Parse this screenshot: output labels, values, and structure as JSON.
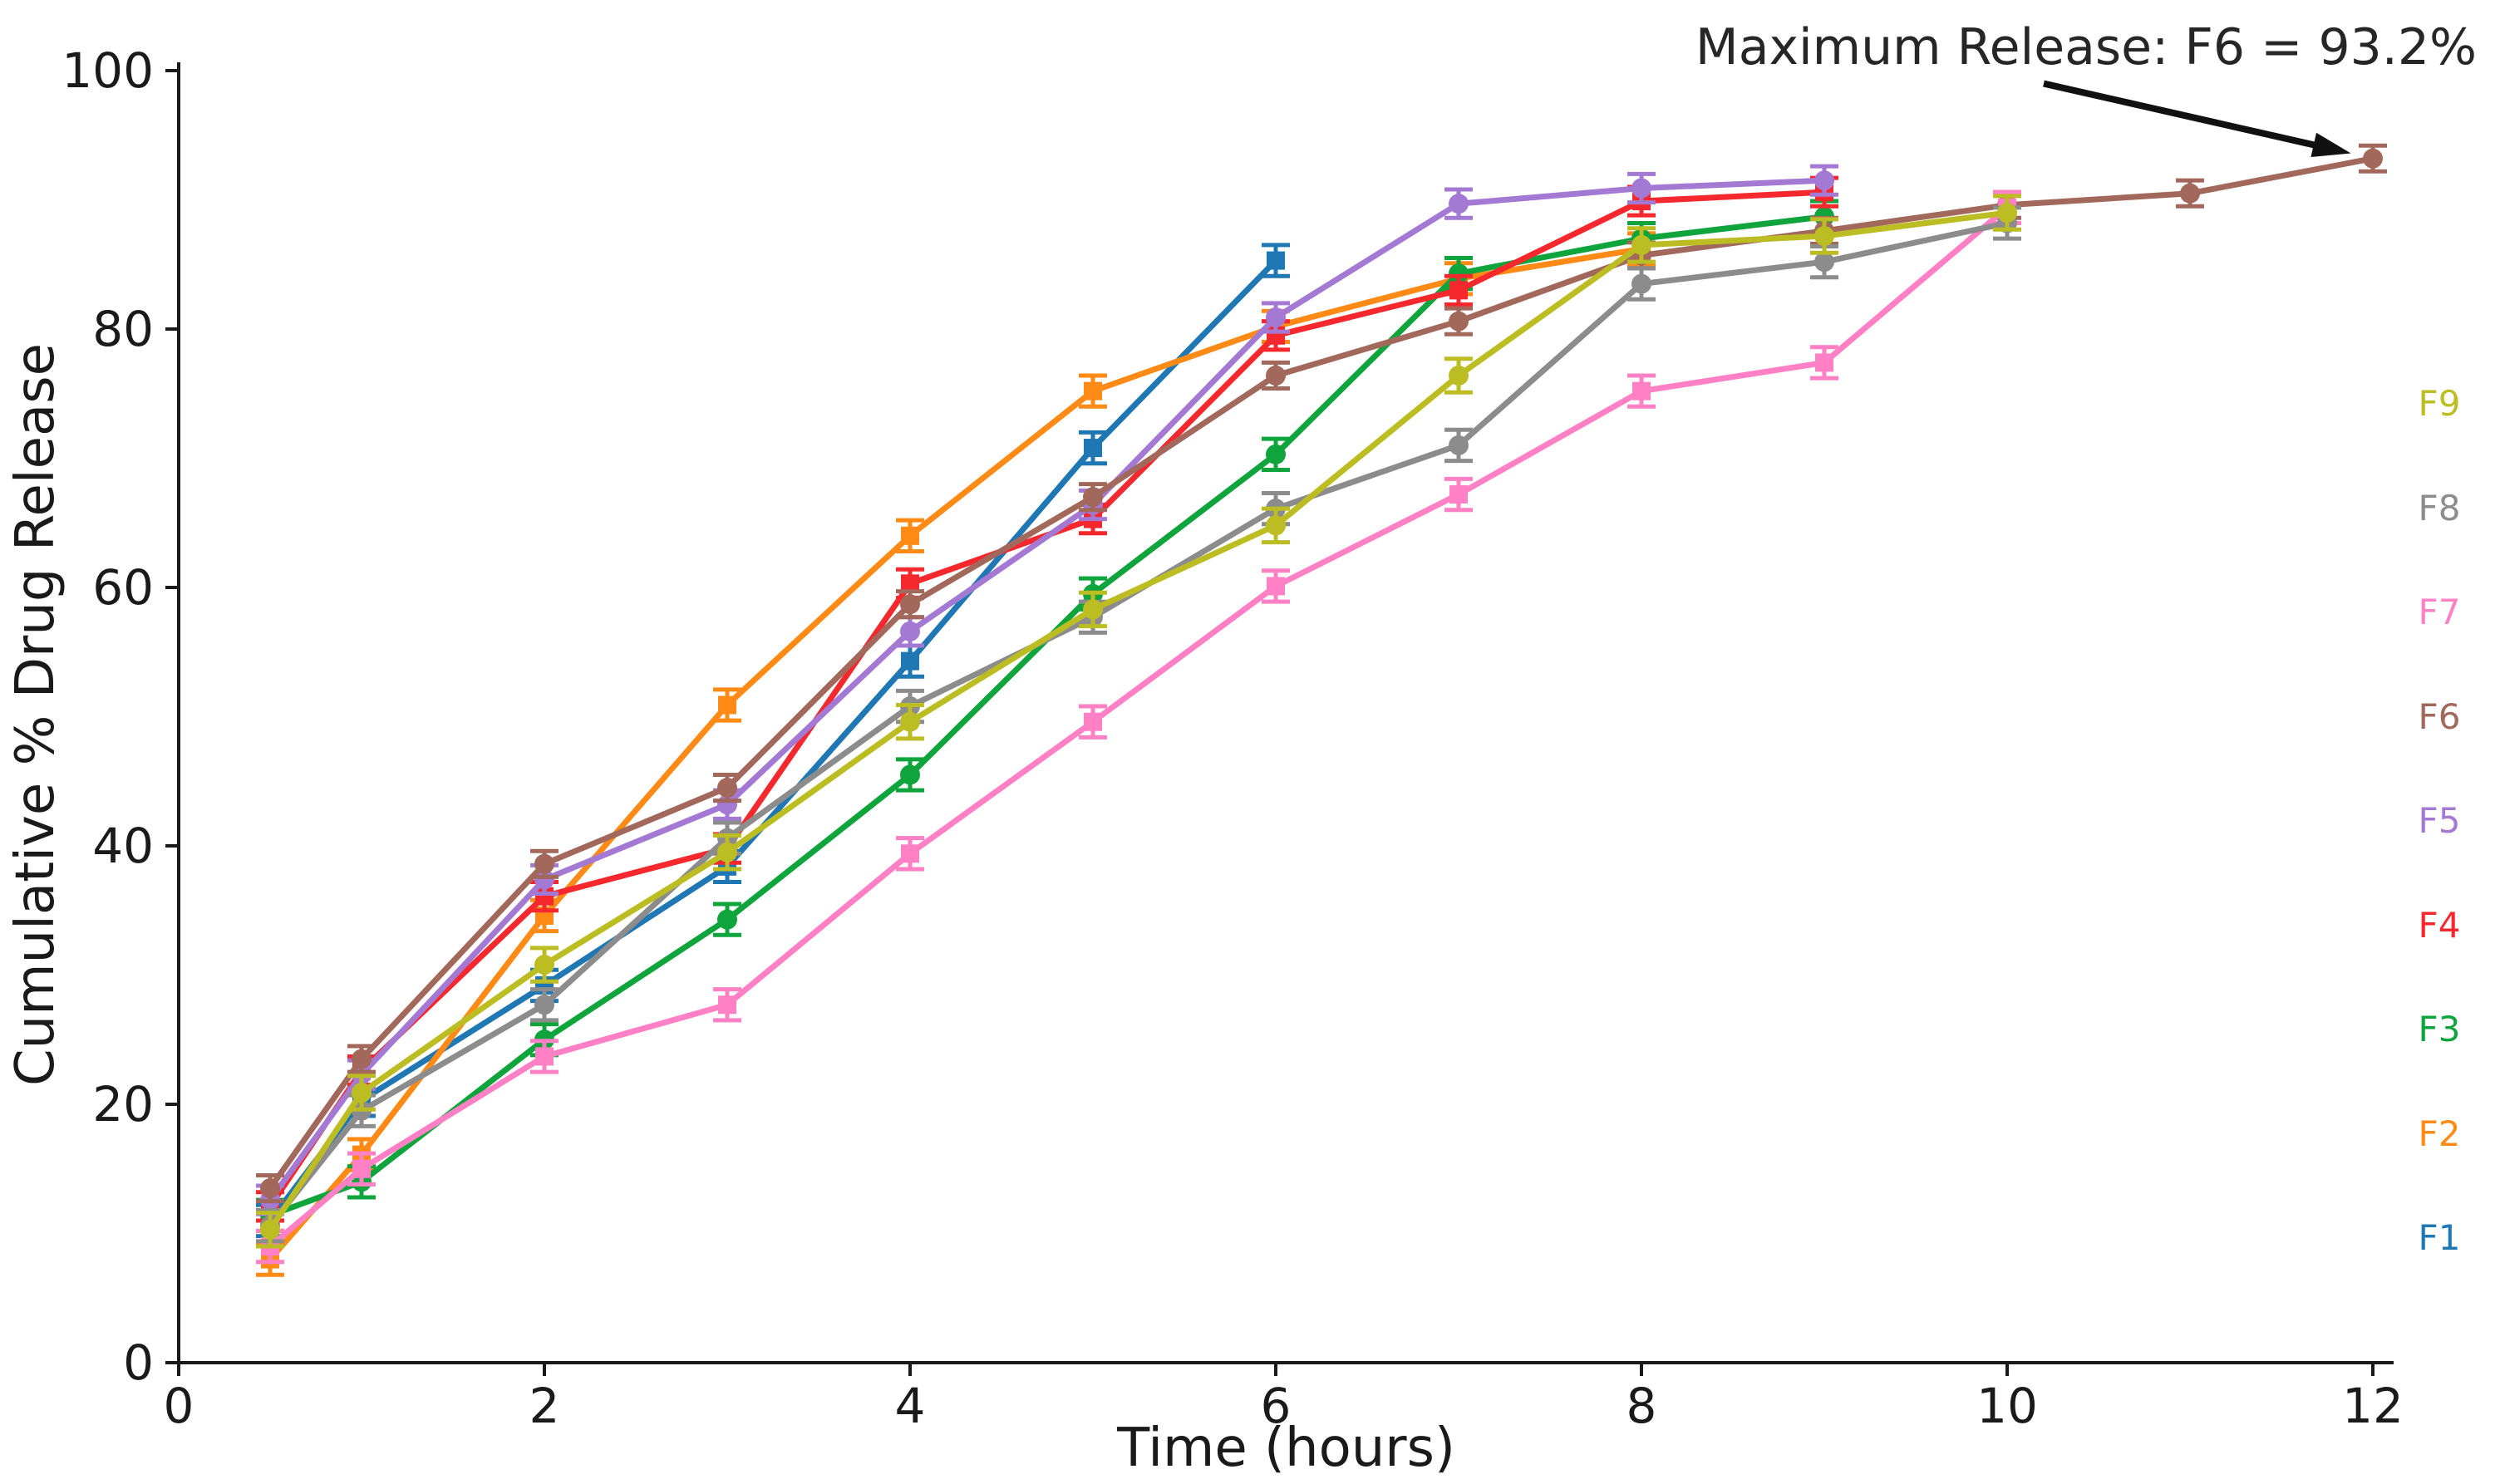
{
  "chart_data": {
    "type": "line",
    "title": "",
    "xlabel": "Time (hours)",
    "ylabel": "Cumulative % Drug Release",
    "xlim": [
      0,
      12.6
    ],
    "ylim": [
      0,
      105
    ],
    "xticks": [
      0,
      2,
      4,
      6,
      8,
      10,
      12
    ],
    "yticks": [
      0,
      20,
      40,
      60,
      80,
      100
    ],
    "grid": false,
    "error_bars": true,
    "legend_position": "right-outside",
    "annotation": {
      "text": "Maximum Release: F6 = 93.2%",
      "arrow_from": [
        10.2,
        99.0
      ],
      "arrow_to": [
        11.88,
        93.6
      ],
      "points_at": {
        "series": "F6",
        "x": 12,
        "y": 93.2
      }
    },
    "series": [
      {
        "name": "F1",
        "color": "#1f77b4",
        "marker": "square",
        "x": [
          0.5,
          1,
          2,
          3,
          4,
          5,
          6
        ],
        "y": [
          11.0,
          20.3,
          29.2,
          38.4,
          54.3,
          70.8,
          85.3
        ],
        "yerr": 1.2
      },
      {
        "name": "F2",
        "color": "#ff8a15",
        "marker": "square",
        "x": [
          0.5,
          1,
          2,
          3,
          4,
          5,
          6,
          7,
          8
        ],
        "y": [
          8.0,
          16.1,
          34.6,
          50.9,
          64.0,
          75.2,
          80.2,
          83.9,
          86.2
        ],
        "yerr": 1.2
      },
      {
        "name": "F3",
        "color": "#0fa43c",
        "marker": "circle",
        "x": [
          0.5,
          1,
          2,
          3,
          4,
          5,
          6,
          7,
          8,
          9
        ],
        "y": [
          11.4,
          14.0,
          25.0,
          34.3,
          45.5,
          59.5,
          70.3,
          84.3,
          87.0,
          88.7
        ],
        "yerr": 1.2
      },
      {
        "name": "F4",
        "color": "#f5282d",
        "marker": "square",
        "x": [
          0.5,
          1,
          2,
          3,
          4,
          5,
          6,
          7,
          8,
          9
        ],
        "y": [
          12.1,
          22.6,
          36.1,
          39.8,
          60.3,
          65.3,
          79.5,
          83.0,
          89.9,
          90.6
        ],
        "yerr": 1.1
      },
      {
        "name": "F5",
        "color": "#a379d4",
        "marker": "circle",
        "x": [
          0.5,
          1,
          2,
          3,
          4,
          5,
          6,
          7,
          8,
          9
        ],
        "y": [
          12.6,
          22.3,
          37.4,
          43.2,
          56.6,
          66.4,
          80.9,
          89.7,
          90.9,
          91.5
        ],
        "yerr": 1.1
      },
      {
        "name": "F6",
        "color": "#a2685c",
        "marker": "circle",
        "x": [
          0.5,
          1,
          2,
          3,
          4,
          5,
          6,
          7,
          8,
          9,
          10,
          11,
          12
        ],
        "y": [
          13.5,
          23.5,
          38.6,
          44.5,
          58.7,
          67.0,
          76.4,
          80.6,
          85.7,
          87.6,
          89.6,
          90.5,
          93.2
        ],
        "yerr": 1.0
      },
      {
        "name": "F7",
        "color": "#ff80c4",
        "marker": "square",
        "x": [
          0.5,
          1,
          2,
          3,
          4,
          5,
          6,
          7,
          8,
          9,
          10
        ],
        "y": [
          9.0,
          15.0,
          23.7,
          27.7,
          39.4,
          49.6,
          60.1,
          67.2,
          75.2,
          77.4,
          89.4
        ],
        "yerr": 1.2
      },
      {
        "name": "F8",
        "color": "#8c8c8c",
        "marker": "circle",
        "x": [
          0.5,
          1,
          2,
          3,
          4,
          5,
          6,
          7,
          8,
          9,
          10
        ],
        "y": [
          10.6,
          19.5,
          27.7,
          40.6,
          50.8,
          57.7,
          66.1,
          71.0,
          83.5,
          85.2,
          88.2
        ],
        "yerr": 1.2
      },
      {
        "name": "F9",
        "color": "#bcbd22",
        "marker": "circle",
        "x": [
          0.5,
          1,
          2,
          3,
          4,
          5,
          6,
          7,
          8,
          9,
          10
        ],
        "y": [
          10.3,
          20.9,
          30.8,
          39.5,
          49.6,
          58.3,
          64.8,
          76.4,
          86.5,
          87.2,
          89.0
        ],
        "yerr": 1.3
      }
    ],
    "legend_order_top_to_bottom": [
      "F9",
      "F8",
      "F7",
      "F6",
      "F5",
      "F4",
      "F3",
      "F2",
      "F1"
    ]
  }
}
